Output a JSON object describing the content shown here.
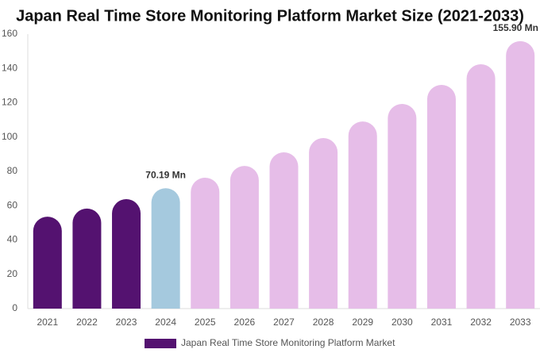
{
  "chart_data": {
    "type": "bar",
    "title": "Japan Real Time Store Monitoring Platform Market Size (2021-2033)",
    "categories": [
      "2021",
      "2022",
      "2023",
      "2024",
      "2025",
      "2026",
      "2027",
      "2028",
      "2029",
      "2030",
      "2031",
      "2032",
      "2033"
    ],
    "series": [
      {
        "name": "Japan Real Time Store Monitoring Platform Market",
        "color": "#541270",
        "values": [
          53.6,
          58.3,
          63.8,
          70.19,
          76.3,
          83.2,
          91.1,
          99.4,
          109.1,
          119.3,
          130.4,
          142.4,
          155.9
        ],
        "value_labels": [
          null,
          null,
          null,
          "70.19 Mn",
          null,
          null,
          null,
          null,
          null,
          null,
          null,
          null,
          "155.90 Mn"
        ],
        "colors": [
          "#541270",
          "#541270",
          "#541270",
          "#a5c9de",
          "#e6bde8",
          "#e6bde8",
          "#e6bde8",
          "#e6bde8",
          "#e6bde8",
          "#e6bde8",
          "#e6bde8",
          "#e6bde8",
          "#e6bde8"
        ]
      }
    ],
    "ylim": [
      0,
      160
    ],
    "yticks": [
      0,
      20,
      40,
      60,
      80,
      100,
      120,
      140,
      160
    ],
    "grid": false
  }
}
